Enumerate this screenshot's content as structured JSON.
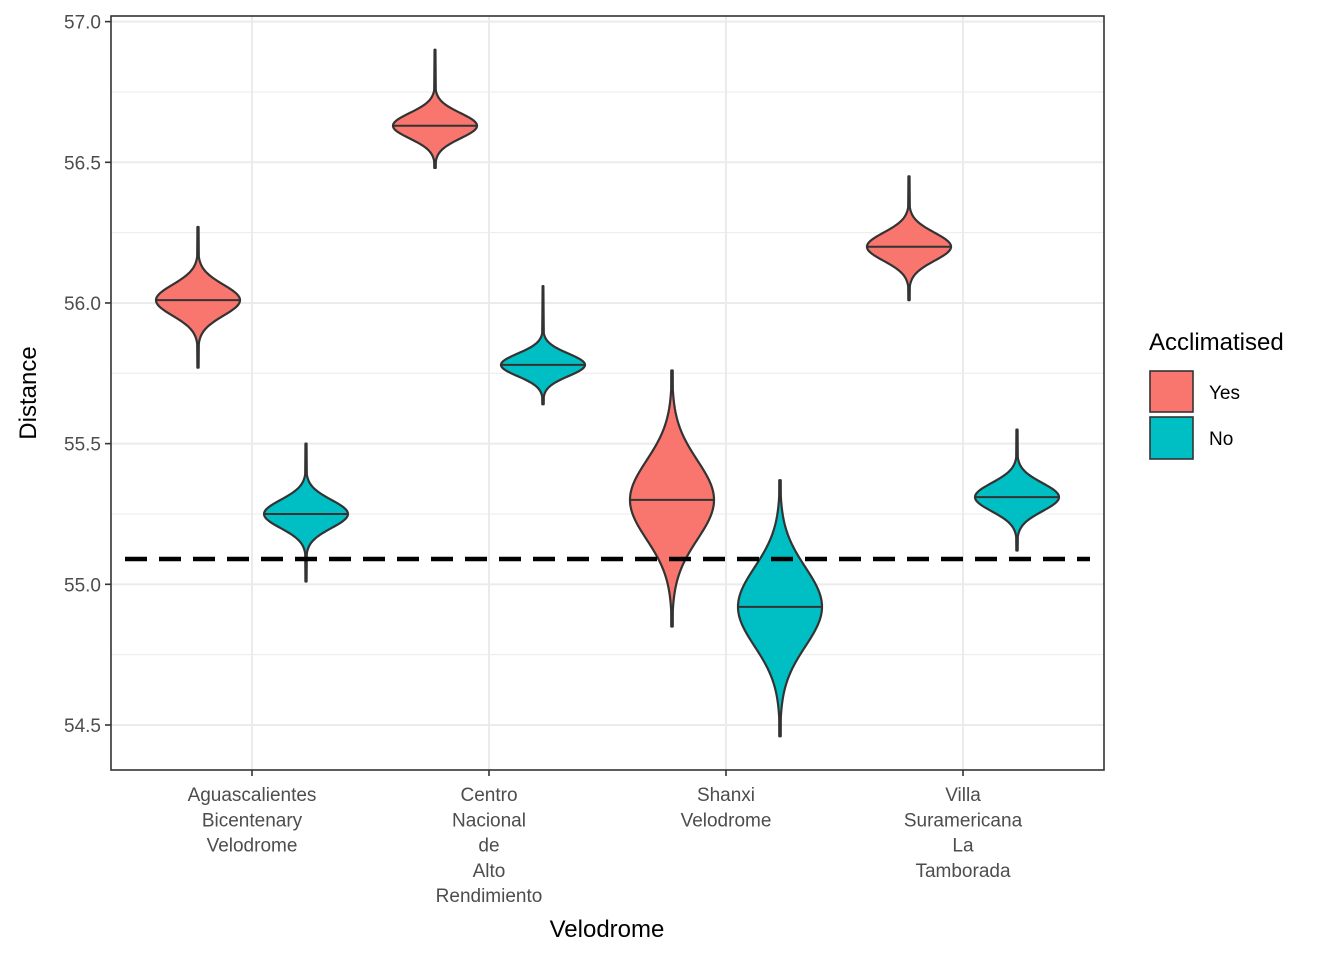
{
  "chart_data": {
    "type": "violin",
    "xlabel": "Velodrome",
    "ylabel": "Distance",
    "ylim": [
      54.34,
      57.02
    ],
    "yticks": [
      54.5,
      55.0,
      55.5,
      56.0,
      56.5,
      57.0
    ],
    "ytick_labels": [
      "54.5",
      "55.0",
      "55.5",
      "56.0",
      "56.5",
      "57.0"
    ],
    "grid": true,
    "categories": [
      [
        "Aguascalientes",
        "Bicentenary",
        "Velodrome"
      ],
      [
        "Centro",
        "Nacional",
        "de",
        "Alto",
        "Rendimiento"
      ],
      [
        "Shanxi",
        "Velodrome"
      ],
      [
        "Villa",
        "Suramericana",
        "La",
        "Tamborada"
      ]
    ],
    "reference_line": {
      "y": 55.09,
      "style": "dashed",
      "color": "#000000"
    },
    "legend": {
      "title": "Acclimatised",
      "placement": "right",
      "entries": [
        {
          "label": "Yes",
          "color": "#F8766D"
        },
        {
          "label": "No",
          "color": "#00BFC4"
        }
      ]
    },
    "series": [
      {
        "name": "Yes",
        "color": "#F8766D",
        "violins": [
          {
            "category_index": 0,
            "min": 55.77,
            "max": 56.27,
            "median": 56.01,
            "sd": 0.055,
            "skew": 0
          },
          {
            "category_index": 1,
            "min": 56.48,
            "max": 56.9,
            "median": 56.63,
            "sd": 0.045,
            "skew": 0
          },
          {
            "category_index": 2,
            "min": 54.85,
            "max": 55.76,
            "median": 55.3,
            "sd": 0.14,
            "skew": 0.05
          },
          {
            "category_index": 3,
            "min": 56.01,
            "max": 56.45,
            "median": 56.2,
            "sd": 0.05,
            "skew": 0
          }
        ]
      },
      {
        "name": "No",
        "color": "#00BFC4",
        "violins": [
          {
            "category_index": 0,
            "min": 55.01,
            "max": 55.5,
            "median": 55.25,
            "sd": 0.05,
            "skew": 0
          },
          {
            "category_index": 1,
            "min": 55.64,
            "max": 56.06,
            "median": 55.78,
            "sd": 0.04,
            "skew": 0
          },
          {
            "category_index": 2,
            "min": 54.46,
            "max": 55.37,
            "median": 54.92,
            "sd": 0.14,
            "skew": 0
          },
          {
            "category_index": 3,
            "min": 55.12,
            "max": 55.55,
            "median": 55.31,
            "sd": 0.05,
            "skew": 0
          }
        ]
      }
    ]
  }
}
